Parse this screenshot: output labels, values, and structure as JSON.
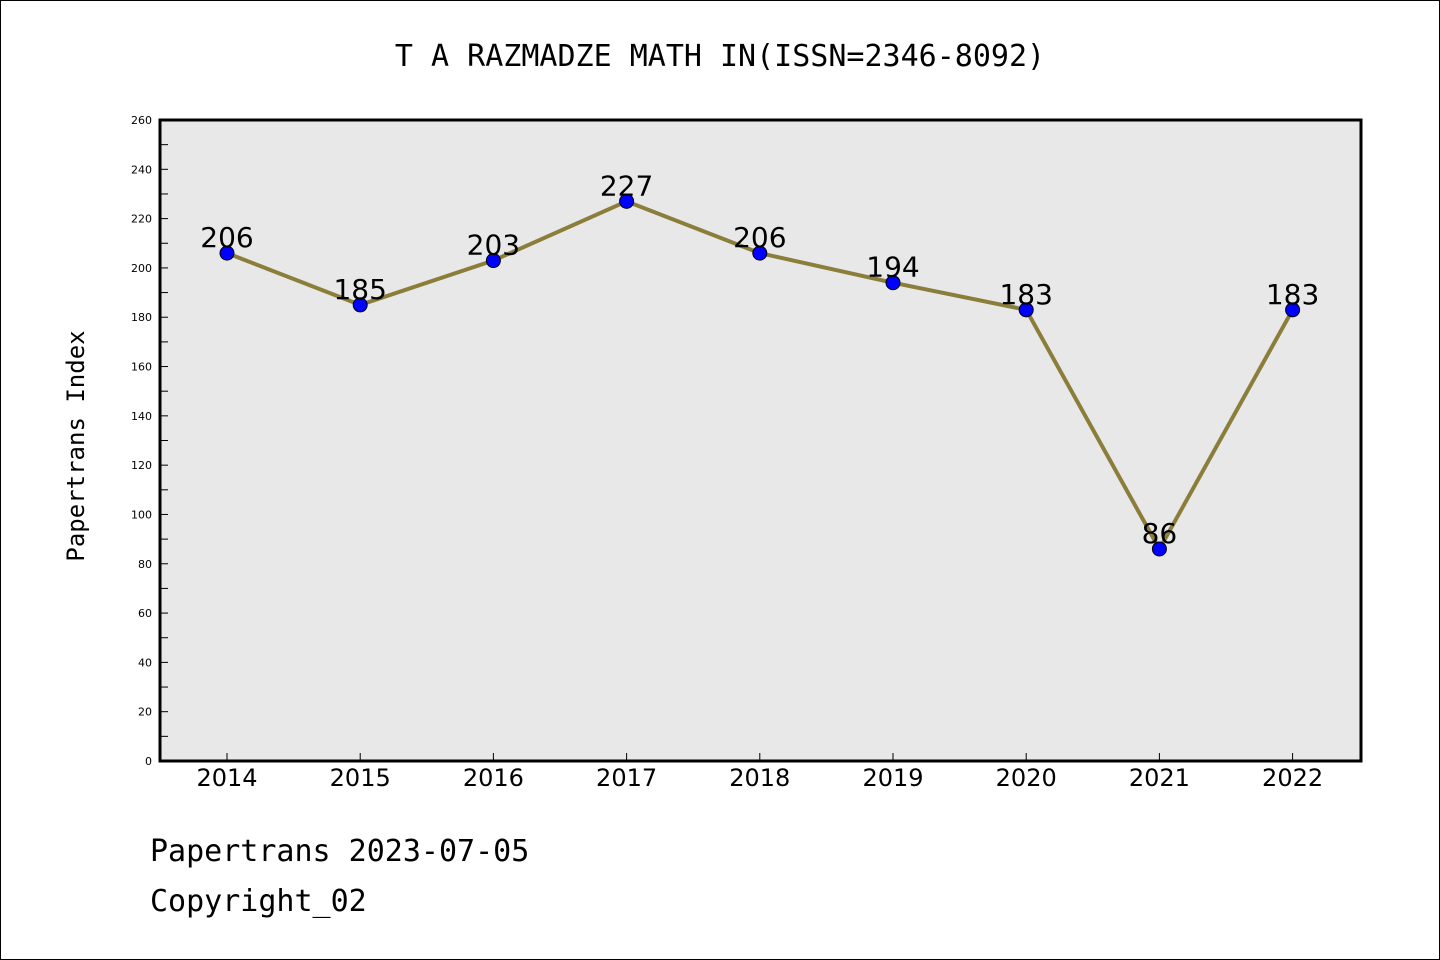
{
  "chart_data": {
    "type": "line",
    "title": "T A RAZMADZE MATH IN(ISSN=2346-8092)",
    "xlabel": "",
    "ylabel": "Papertrans Index",
    "x": [
      "2014",
      "2015",
      "2016",
      "2017",
      "2018",
      "2019",
      "2020",
      "2021",
      "2022"
    ],
    "series": [
      {
        "values": [
          206,
          185,
          203,
          227,
          206,
          194,
          183,
          86,
          183
        ]
      }
    ],
    "data_labels": [
      "206",
      "185",
      "203",
      "227",
      "206",
      "194",
      "183",
      "86",
      "183"
    ],
    "ylim": [
      0,
      260
    ],
    "yticks": [
      0,
      20,
      40,
      60,
      80,
      100,
      120,
      140,
      160,
      180,
      200,
      220,
      240,
      260
    ],
    "grid": false,
    "legend": "none",
    "colors": {
      "line": "#8b7d3a",
      "marker": "#0000ff",
      "plot_background": "#e8e8e8"
    }
  },
  "footer": {
    "date_text": "Papertrans 2023-07-05",
    "copyright_text": "Copyright_02"
  }
}
